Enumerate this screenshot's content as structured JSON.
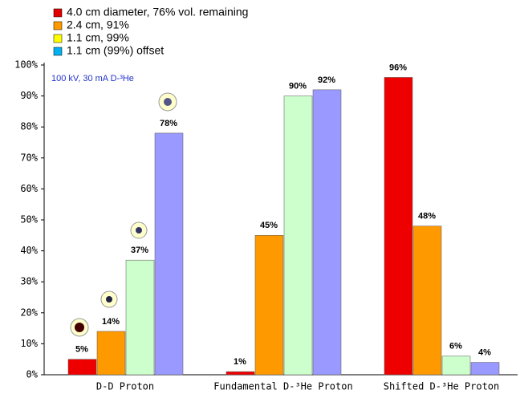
{
  "chart_data": {
    "type": "bar",
    "annotation": "100 kV, 30 mA D-³He",
    "categories": [
      "D-D Proton",
      "Fundamental D-³He Proton",
      "Shifted D-³He Proton"
    ],
    "series": [
      {
        "name": "4.0 cm diameter, 76% vol. remaining",
        "color": "#ee0000",
        "legend_color": "#e00000",
        "values": [
          5,
          1,
          96
        ],
        "value_labels": [
          "5%",
          "1%",
          "96%"
        ]
      },
      {
        "name": "2.4 cm, 91%",
        "color": "#ff9900",
        "legend_color": "#ff9900",
        "values": [
          14,
          45,
          48
        ],
        "value_labels": [
          "14%",
          "45%",
          "48%"
        ]
      },
      {
        "name": "1.1 cm, 99%",
        "color": "#ccffcc",
        "legend_color": "#ffff00",
        "values": [
          37,
          90,
          6
        ],
        "value_labels": [
          "37%",
          "90%",
          "6%"
        ]
      },
      {
        "name": "1.1 cm (99%) offset",
        "color": "#9999ff",
        "legend_color": "#00b0f0",
        "values": [
          78,
          92,
          4
        ],
        "value_labels": [
          "78%",
          "92%",
          "4%"
        ]
      }
    ],
    "ylim": [
      0,
      100
    ],
    "yticks": [
      {
        "value": 0,
        "label": "0%"
      },
      {
        "value": 10,
        "label": "10%"
      },
      {
        "value": 20,
        "label": "20%"
      },
      {
        "value": 30,
        "label": "30%"
      },
      {
        "value": 40,
        "label": "40%"
      },
      {
        "value": 50,
        "label": "50%"
      },
      {
        "value": 60,
        "label": "60%"
      },
      {
        "value": 70,
        "label": "70%"
      },
      {
        "value": 80,
        "label": "80%"
      },
      {
        "value": 90,
        "label": "90%"
      },
      {
        "value": 100,
        "label": "100%"
      }
    ]
  }
}
